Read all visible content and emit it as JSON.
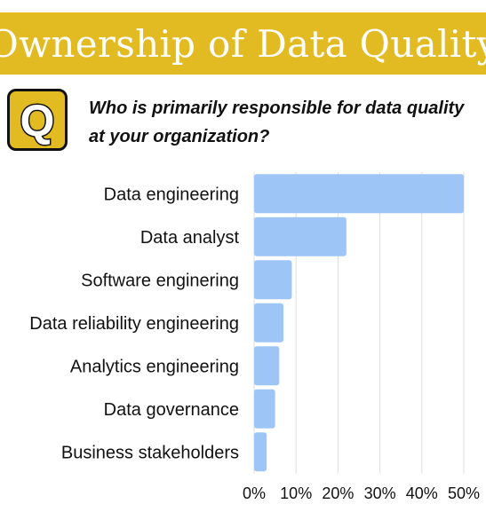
{
  "header": {
    "title": "Ownership of Data Quality",
    "badge_letter": "Q",
    "question": "Who is primarily responsible for data quality at your organization?"
  },
  "colors": {
    "title_bg": "#E2BA22",
    "badge_bg": "#E2BA22",
    "bar": "#9DC6F7",
    "grid": "#dddddd"
  },
  "chart_data": {
    "type": "bar",
    "orientation": "horizontal",
    "categories": [
      "Data engineering",
      "Data analyst",
      "Software enginering",
      "Data reliability engineering",
      "Analytics engineering",
      "Data governance",
      "Business stakeholders"
    ],
    "values": [
      50,
      22,
      9,
      7,
      6,
      5,
      3
    ],
    "unit": "%",
    "xlim": [
      0,
      50
    ],
    "xticks": [
      "0%",
      "10%",
      "20%",
      "30%",
      "40%",
      "50%"
    ],
    "grid": "vertical",
    "legend": "none"
  }
}
